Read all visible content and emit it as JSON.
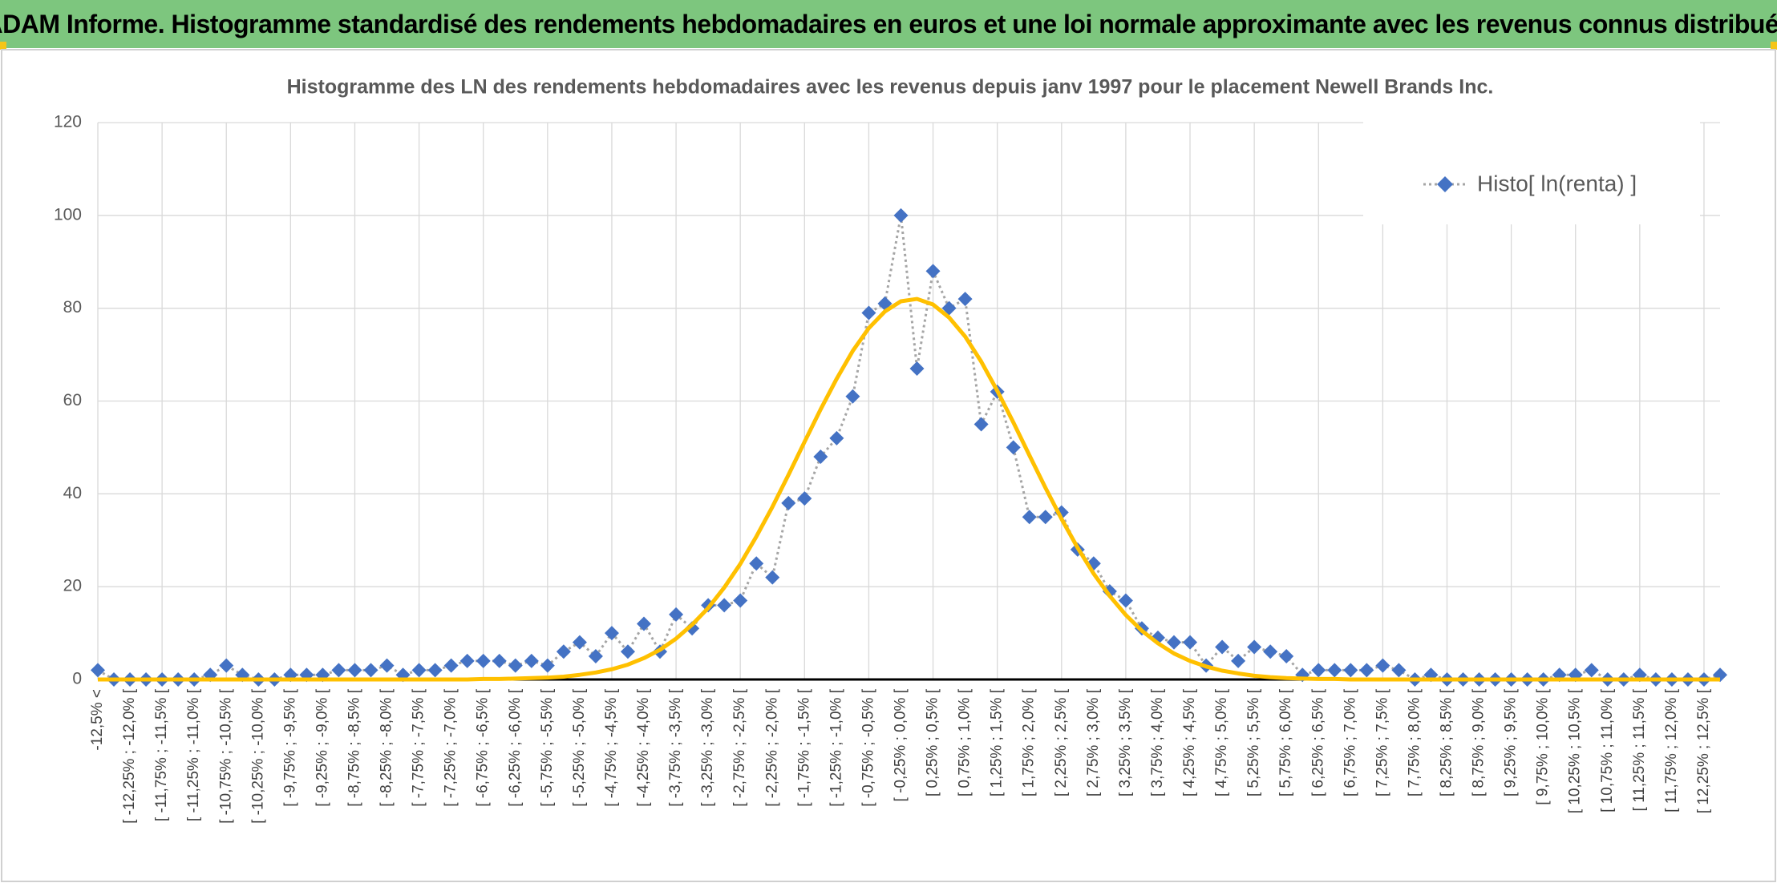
{
  "header": {
    "title": "ADAM Informe. Histogramme standardisé des rendements hebdomadaires en euros et une loi normale approximante avec les revenus connus distribués"
  },
  "chart_data": {
    "type": "line",
    "title": "Histogramme des LN des rendements hebdomadaires avec les revenus depuis janv 1997 pour le placement Newell Brands Inc.",
    "categories": [
      "-12,5% <",
      null,
      "[ -12,25% ; -12,0% [",
      null,
      "[ -11,75% ; -11,5% [",
      null,
      "[ -11,25% ; -11,0% [",
      null,
      "[ -10,75% ; -10,5% [",
      null,
      "[ -10,25% ; -10,0% [",
      null,
      "[ -9,75% ; -9,5% [",
      null,
      "[ -9,25% ; -9,0% [",
      null,
      "[ -8,75% ; -8,5% [",
      null,
      "[ -8,25% ; -8,0% [",
      null,
      "[ -7,75% ; -7,5% [",
      null,
      "[ -7,25% ; -7,0% [",
      null,
      "[ -6,75% ; -6,5% [",
      null,
      "[ -6,25% ; -6,0% [",
      null,
      "[ -5,75% ; -5,5% [",
      null,
      "[ -5,25% ; -5,0% [",
      null,
      "[ -4,75% ; -4,5% [",
      null,
      "[ -4,25% ; -4,0% [",
      null,
      "[ -3,75% ; -3,5% [",
      null,
      "[ -3,25% ; -3,0% [",
      null,
      "[ -2,75% ; -2,5% [",
      null,
      "[ -2,25% ; -2,0% [",
      null,
      "[ -1,75% ; -1,5% [",
      null,
      "[ -1,25% ; -1,0% [",
      null,
      "[ -0,75% ; -0,5% [",
      null,
      "[ -0,25% ; 0,0% [",
      null,
      "[ 0,25% ; 0,5% [",
      null,
      "[ 0,75% ; 1,0% [",
      null,
      "[ 1,25% ; 1,5% [",
      null,
      "[ 1,75% ; 2,0% [",
      null,
      "[ 2,25% ; 2,5% [",
      null,
      "[ 2,75% ; 3,0% [",
      null,
      "[ 3,25% ; 3,5% [",
      null,
      "[ 3,75% ; 4,0% [",
      null,
      "[ 4,25% ; 4,5% [",
      null,
      "[ 4,75% ; 5,0% [",
      null,
      "[ 5,25% ; 5,5% [",
      null,
      "[ 5,75% ; 6,0% [",
      null,
      "[ 6,25% ; 6,5% [",
      null,
      "[ 6,75% ; 7,0% [",
      null,
      "[ 7,25% ; 7,5% [",
      null,
      "[ 7,75% ; 8,0% [",
      null,
      "[ 8,25% ; 8,5% [",
      null,
      "[ 8,75% ; 9,0% [",
      null,
      "[ 9,25% ; 9,5% [",
      null,
      "[ 9,75% ; 10,0% [",
      null,
      "[ 10,25% ; 10,5% [",
      null,
      "[ 10,75% ; 11,0% [",
      null,
      "[ 11,25% ; 11,5% [",
      null,
      "[ 11,75% ; 12,0% [",
      null,
      "[ 12,25% ; 12,5% [",
      null
    ],
    "series": [
      {
        "name": "Histo[ ln(renta) ]",
        "color": "#4472c4",
        "line_color": "#a5a5a5",
        "line_style": "dotted",
        "marker": "diamond",
        "values": [
          2,
          0,
          0,
          0,
          0,
          0,
          0,
          1,
          3,
          1,
          0,
          0,
          1,
          1,
          1,
          2,
          2,
          2,
          3,
          1,
          2,
          2,
          3,
          4,
          4,
          4,
          3,
          4,
          3,
          6,
          8,
          5,
          10,
          6,
          12,
          6,
          14,
          11,
          16,
          16,
          17,
          25,
          22,
          38,
          39,
          48,
          52,
          61,
          79,
          81,
          100,
          67,
          88,
          80,
          82,
          55,
          62,
          50,
          35,
          35,
          36,
          28,
          25,
          19,
          17,
          11,
          9,
          8,
          8,
          3,
          7,
          4,
          7,
          6,
          5,
          1,
          2,
          2,
          2,
          2,
          3,
          2,
          0,
          1,
          0,
          0,
          0,
          0,
          0,
          0,
          0,
          1,
          1,
          2,
          0,
          0,
          1,
          0,
          0,
          0,
          0,
          1
        ]
      },
      {
        "color": "#ffc000",
        "line_color": "#ffc000",
        "line_style": "solid",
        "marker": "none",
        "values": [
          0,
          0,
          0,
          0,
          0,
          0,
          0,
          0,
          0,
          0,
          0,
          0,
          0,
          0,
          0,
          0,
          0,
          0,
          0,
          0,
          0,
          0,
          0,
          0,
          0.1,
          0.1,
          0.2,
          0.3,
          0.4,
          0.6,
          1.0,
          1.5,
          2.2,
          3.2,
          4.6,
          6.4,
          8.8,
          11.8,
          15.4,
          19.8,
          24.9,
          30.8,
          37.2,
          44.1,
          51.2,
          58.2,
          64.8,
          70.8,
          75.7,
          79.3,
          81.5,
          82.0,
          80.8,
          78.0,
          73.9,
          68.5,
          62.2,
          55.4,
          48.3,
          41.3,
          34.6,
          28.4,
          22.8,
          18.0,
          13.9,
          10.5,
          7.8,
          5.6,
          4.0,
          2.8,
          1.9,
          1.3,
          0.8,
          0.5,
          0.3,
          0.2,
          0.1,
          0.1,
          0,
          0,
          0,
          0,
          0,
          0,
          0,
          0,
          0,
          0,
          0,
          0,
          0,
          0,
          0,
          0,
          0,
          0,
          0,
          0,
          0,
          0,
          0,
          0
        ]
      }
    ],
    "ylim": [
      0,
      120
    ],
    "yticks": [
      0,
      20,
      40,
      60,
      80,
      100,
      120
    ],
    "grid": true,
    "legend": "top-right"
  }
}
